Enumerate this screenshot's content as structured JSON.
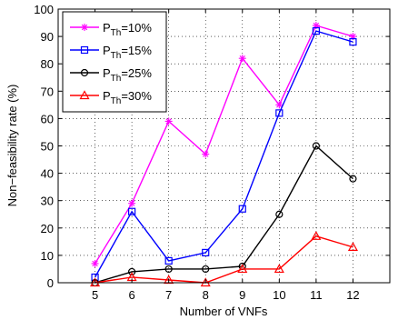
{
  "chart_data": {
    "type": "line",
    "xlabel": "Number of VNFs",
    "ylabel": "Non−feasibility rate (%)",
    "x": [
      5,
      6,
      7,
      8,
      9,
      10,
      11,
      12
    ],
    "xlim": [
      4,
      13
    ],
    "ylim": [
      0,
      100
    ],
    "xticks": [
      "5",
      "6",
      "7",
      "8",
      "9",
      "10",
      "11",
      "12"
    ],
    "yticks": [
      "0",
      "10",
      "20",
      "30",
      "40",
      "50",
      "60",
      "70",
      "80",
      "90",
      "100"
    ],
    "grid": true,
    "legend_position": "top-left",
    "series": [
      {
        "name_main": "P",
        "name_sub": "Th",
        "name_rest": "=10%",
        "color": "#ff00ff",
        "marker": "asterisk",
        "values": [
          7,
          29,
          59,
          47,
          82,
          65,
          94,
          90
        ]
      },
      {
        "name_main": "P",
        "name_sub": "Th",
        "name_rest": "=15%",
        "color": "#0000ff",
        "marker": "square",
        "values": [
          2,
          26,
          8,
          11,
          27,
          62,
          92,
          88
        ]
      },
      {
        "name_main": "P",
        "name_sub": "Th",
        "name_rest": "=25%",
        "color": "#000000",
        "marker": "circle",
        "values": [
          0,
          4,
          5,
          5,
          6,
          25,
          50,
          38
        ]
      },
      {
        "name_main": "P",
        "name_sub": "Th",
        "name_rest": "=30%",
        "color": "#ff0000",
        "marker": "triangle",
        "values": [
          0,
          2,
          1,
          0,
          5,
          5,
          17,
          13
        ]
      }
    ]
  }
}
